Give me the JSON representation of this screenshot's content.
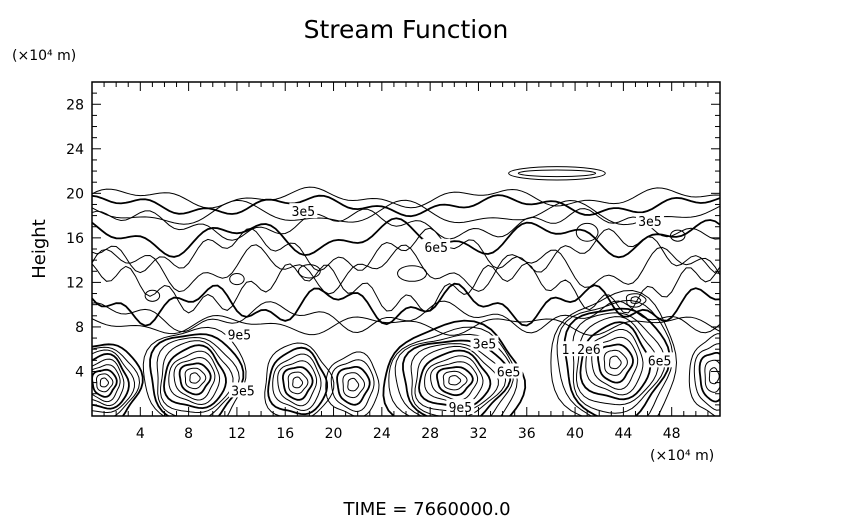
{
  "chart_data": {
    "type": "contour",
    "title": "Stream Function",
    "xlabel": "",
    "ylabel": "Height",
    "x_unit_label": "(×10⁴ m)",
    "y_unit_label": "(×10⁴ m)",
    "xlim": [
      0,
      52
    ],
    "ylim": [
      0,
      30
    ],
    "xticks": [
      4,
      8,
      12,
      16,
      20,
      24,
      28,
      32,
      36,
      40,
      44,
      48
    ],
    "yticks": [
      4,
      8,
      12,
      16,
      20,
      24,
      28
    ],
    "contour_labels": [
      {
        "text": "3e5",
        "x": 17.5,
        "y": 18.4
      },
      {
        "text": "6e5",
        "x": 28.5,
        "y": 15.2
      },
      {
        "text": "3e5",
        "x": 46.2,
        "y": 17.5
      },
      {
        "text": "9e5",
        "x": 12.2,
        "y": 7.3
      },
      {
        "text": "3e5",
        "x": 12.5,
        "y": 2.3
      },
      {
        "text": "3e5",
        "x": 32.5,
        "y": 6.5
      },
      {
        "text": "6e5",
        "x": 34.5,
        "y": 4.0
      },
      {
        "text": "1.2e6",
        "x": 40.5,
        "y": 6.0
      },
      {
        "text": "6e5",
        "x": 47.0,
        "y": 5.0
      },
      {
        "text": "9e5",
        "x": 30.5,
        "y": 0.8
      }
    ],
    "vortices": [
      {
        "x": 1.0,
        "y": 3.0,
        "rx": 3.0,
        "ry": 3.6,
        "levels": 9
      },
      {
        "x": 8.5,
        "y": 3.4,
        "rx": 4.2,
        "ry": 4.6,
        "levels": 10
      },
      {
        "x": 17.0,
        "y": 3.0,
        "rx": 2.8,
        "ry": 3.4,
        "levels": 7
      },
      {
        "x": 21.6,
        "y": 2.8,
        "rx": 2.2,
        "ry": 2.8,
        "levels": 5
      },
      {
        "x": 30.0,
        "y": 3.2,
        "rx": 5.8,
        "ry": 5.0,
        "levels": 12
      },
      {
        "x": 43.3,
        "y": 4.8,
        "rx": 5.2,
        "ry": 6.2,
        "levels": 11
      },
      {
        "x": 51.5,
        "y": 3.6,
        "rx": 2.0,
        "ry": 3.6,
        "levels": 5
      },
      {
        "x": 45.0,
        "y": 10.4,
        "rx": 0.8,
        "ry": 0.6,
        "levels": 2
      }
    ],
    "footer": "TIME  =  7660000.0"
  }
}
